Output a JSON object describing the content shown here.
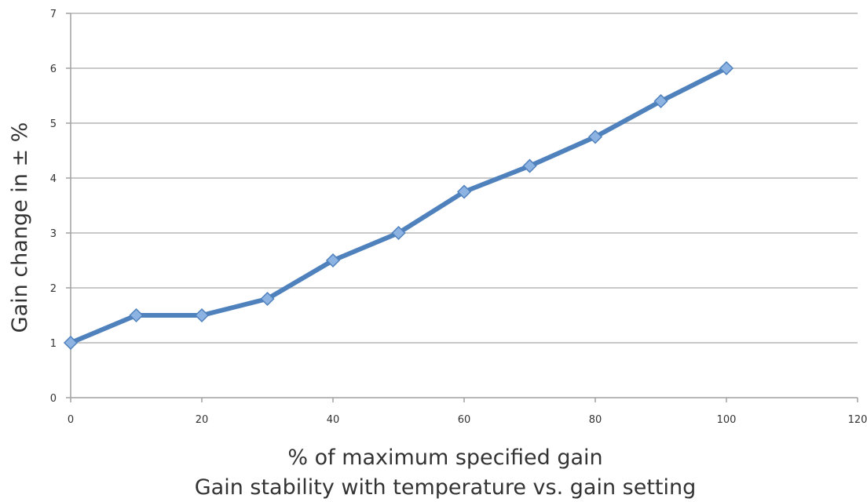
{
  "chart_data": {
    "type": "line",
    "title": "",
    "xlabel": "% of maximum specified gain",
    "ylabel": "Gain change in ± %",
    "caption": "Gain stability with temperature vs. gain setting",
    "xlim": [
      0,
      120
    ],
    "ylim": [
      0,
      7
    ],
    "x_ticks": [
      0,
      20,
      40,
      60,
      80,
      100,
      120
    ],
    "y_ticks": [
      0,
      1,
      2,
      3,
      4,
      5,
      6,
      7
    ],
    "grid": "horizontal",
    "legend": "none",
    "series": [
      {
        "x": [
          0,
          10,
          20,
          30,
          40,
          50,
          60,
          70,
          80,
          90,
          100
        ],
        "y": [
          1.0,
          1.5,
          1.5,
          1.8,
          2.5,
          3.0,
          3.75,
          4.22,
          4.75,
          5.4,
          6.0
        ],
        "marker": "diamond",
        "color": "#4f81bd",
        "marker_color": "#8db3e2"
      }
    ],
    "colors": {
      "gridline": "#c8c8c8",
      "axis": "#a0a0a0",
      "text": "#333333"
    }
  }
}
